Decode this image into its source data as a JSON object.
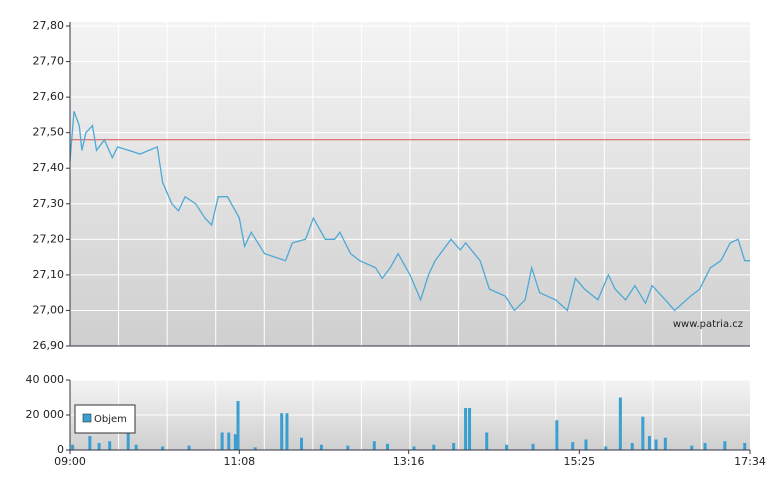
{
  "chart_data": [
    {
      "type": "line",
      "color": "#4ea9d6",
      "reference": 27.48,
      "reference_color": "#d9534f",
      "watermark": "www.patria.cz",
      "ylim": [
        26.9,
        27.8
      ],
      "yticks": [
        {
          "value": 26.9,
          "label": "26,90"
        },
        {
          "value": 27.0,
          "label": "27,00"
        },
        {
          "value": 27.1,
          "label": "27,10"
        },
        {
          "value": 27.2,
          "label": "27,20"
        },
        {
          "value": 27.3,
          "label": "27,30"
        },
        {
          "value": 27.4,
          "label": "27,40"
        },
        {
          "value": 27.5,
          "label": "27,50"
        },
        {
          "value": 27.6,
          "label": "27,60"
        },
        {
          "value": 27.7,
          "label": "27,70"
        },
        {
          "value": 27.8,
          "label": "27,80"
        }
      ],
      "xlim": [
        "09:00",
        "17:34"
      ],
      "x": [
        "09:00",
        "09:03",
        "09:07",
        "09:09",
        "09:12",
        "09:17",
        "09:20",
        "09:26",
        "09:32",
        "09:36",
        "09:53",
        "10:06",
        "10:10",
        "10:17",
        "10:22",
        "10:27",
        "10:35",
        "10:42",
        "10:47",
        "10:52",
        "10:59",
        "11:08",
        "11:12",
        "11:17",
        "11:27",
        "11:43",
        "11:48",
        "11:58",
        "12:04",
        "12:13",
        "12:20",
        "12:24",
        "12:32",
        "12:39",
        "12:51",
        "12:56",
        "13:02",
        "13:08",
        "13:17",
        "13:25",
        "13:31",
        "13:36",
        "13:48",
        "13:55",
        "13:59",
        "14:10",
        "14:17",
        "14:29",
        "14:36",
        "14:44",
        "14:49",
        "14:55",
        "15:07",
        "15:16",
        "15:22",
        "15:29",
        "15:39",
        "15:47",
        "15:52",
        "16:00",
        "16:07",
        "16:15",
        "16:20",
        "16:30",
        "16:37",
        "16:49",
        "16:56",
        "17:04",
        "17:12",
        "17:19",
        "17:25",
        "17:30",
        "17:34"
      ],
      "values": [
        27.42,
        27.56,
        27.52,
        27.45,
        27.5,
        27.52,
        27.45,
        27.48,
        27.43,
        27.46,
        27.44,
        27.46,
        27.36,
        27.3,
        27.28,
        27.32,
        27.3,
        27.26,
        27.24,
        27.32,
        27.32,
        27.26,
        27.18,
        27.22,
        27.16,
        27.14,
        27.19,
        27.2,
        27.26,
        27.2,
        27.2,
        27.22,
        27.16,
        27.14,
        27.12,
        27.09,
        27.12,
        27.16,
        27.1,
        27.03,
        27.1,
        27.14,
        27.2,
        27.17,
        27.19,
        27.14,
        27.06,
        27.04,
        27.0,
        27.03,
        27.12,
        27.05,
        27.03,
        27.0,
        27.09,
        27.06,
        27.03,
        27.1,
        27.06,
        27.03,
        27.07,
        27.02,
        27.07,
        27.03,
        27.0,
        27.04,
        27.06,
        27.12,
        27.14,
        27.19,
        27.2,
        27.14,
        27.14
      ]
    },
    {
      "type": "bar",
      "color": "#3a9fd0",
      "legend": "Objem",
      "ylim": [
        0,
        40000
      ],
      "yticks": [
        0,
        {
          "value": 20000,
          "label": "20 000"
        },
        {
          "value": 40000,
          "label": "40 000"
        }
      ],
      "xlim": [
        "09:00",
        "17:34"
      ],
      "xticks": [
        "09:00",
        "11:08",
        "13:16",
        "15:25",
        "17:34"
      ],
      "x": [
        "09:02",
        "09:15",
        "09:22",
        "09:30",
        "09:44",
        "09:50",
        "10:10",
        "10:30",
        "10:55",
        "11:00",
        "11:05",
        "11:07",
        "11:20",
        "11:40",
        "11:44",
        "11:55",
        "12:10",
        "12:30",
        "12:50",
        "13:00",
        "13:20",
        "13:35",
        "13:50",
        "13:59",
        "14:02",
        "14:15",
        "14:30",
        "14:50",
        "15:08",
        "15:20",
        "15:30",
        "15:45",
        "15:56",
        "16:05",
        "16:13",
        "16:18",
        "16:23",
        "16:30",
        "16:50",
        "17:00",
        "17:15",
        "17:30"
      ],
      "values": [
        3000,
        8000,
        4000,
        5000,
        16000,
        3000,
        2000,
        2500,
        10000,
        10000,
        9000,
        28000,
        1500,
        21000,
        21000,
        7000,
        3000,
        2500,
        5000,
        3500,
        2000,
        3000,
        4000,
        24000,
        24000,
        10000,
        3000,
        3500,
        17000,
        4500,
        6000,
        2000,
        30000,
        4000,
        19000,
        8000,
        6000,
        7000,
        2500,
        4000,
        5000,
        4000
      ]
    }
  ]
}
